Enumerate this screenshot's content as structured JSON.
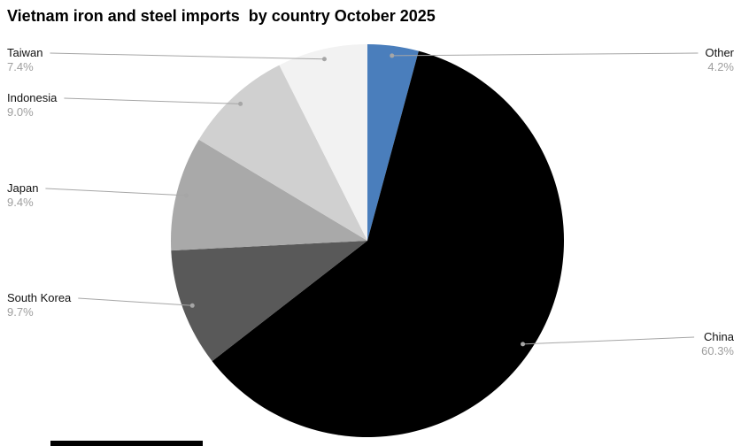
{
  "chart_data": {
    "type": "pie",
    "title": "Vietnam iron and steel imports  by country October 2025",
    "unit": "%",
    "legend_position": "callout-labels",
    "start_angle_deg": 0,
    "direction": "clockwise",
    "slices": [
      {
        "label": "Other",
        "value": 4.2,
        "pct_text": "4.2%",
        "color": "#4a7ebc",
        "side": "right"
      },
      {
        "label": "China",
        "value": 60.3,
        "pct_text": "60.3%",
        "color": "#000000",
        "side": "right"
      },
      {
        "label": "South Korea",
        "value": 9.7,
        "pct_text": "9.7%",
        "color": "#595959",
        "side": "left"
      },
      {
        "label": "Japan",
        "value": 9.4,
        "pct_text": "9.4%",
        "color": "#a9a9a9",
        "side": "left"
      },
      {
        "label": "Indonesia",
        "value": 9.0,
        "pct_text": "9.0%",
        "color": "#d0d0d0",
        "side": "left"
      },
      {
        "label": "Taiwan",
        "value": 7.4,
        "pct_text": "7.4%",
        "color": "#f2f2f2",
        "side": "left"
      }
    ],
    "callout_line_color": "#a6a6a6"
  }
}
